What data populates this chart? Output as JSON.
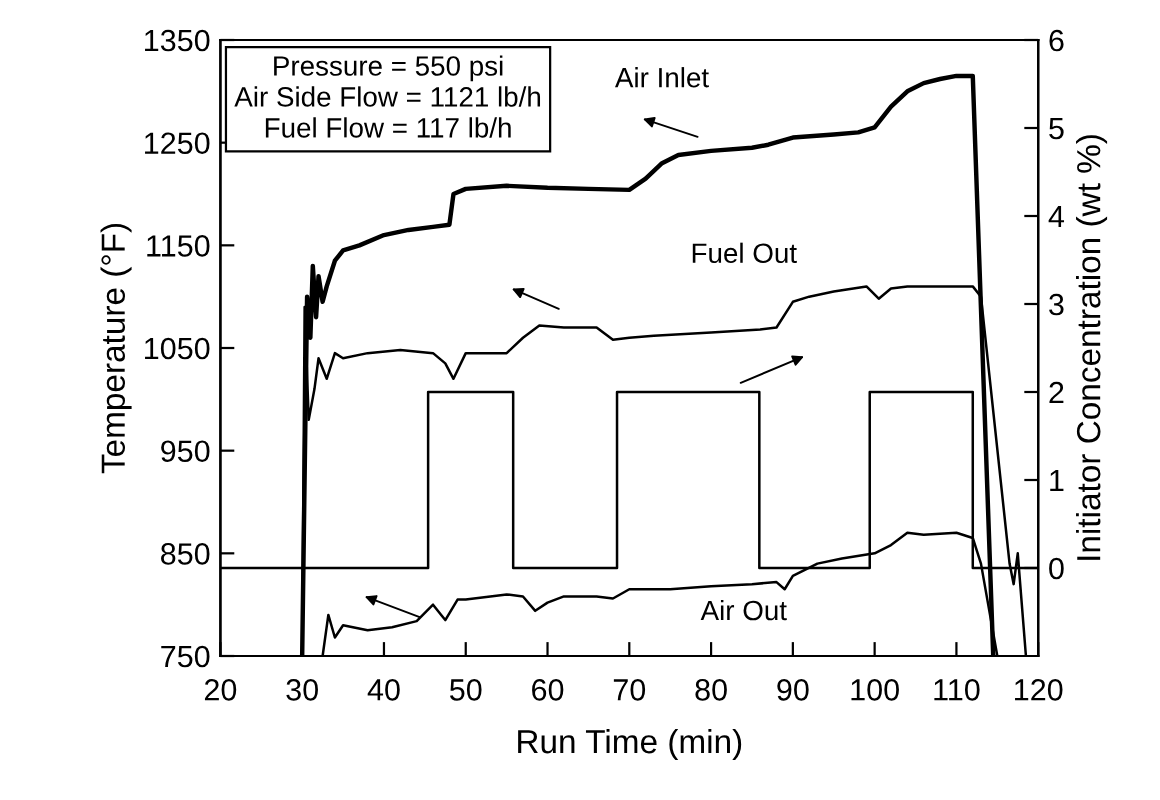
{
  "chart_data": {
    "type": "line",
    "xlabel": "Run Time (min)",
    "ylabel": "Temperature (°F)",
    "y2label": "Initiator Concentration (wt %)",
    "annotations": [
      "Pressure = 550 psi",
      "Air Side Flow = 1121 lb/h",
      "Fuel Flow = 117 lb/h"
    ],
    "xlim": [
      20,
      120
    ],
    "xticks": [
      20,
      30,
      40,
      50,
      60,
      70,
      80,
      90,
      100,
      110,
      120
    ],
    "ylim": [
      750,
      1350
    ],
    "yticks": [
      750,
      850,
      950,
      1050,
      1150,
      1250,
      1350
    ],
    "y2lim": [
      -1,
      6
    ],
    "y2ticks": [
      0,
      1,
      2,
      3,
      4,
      5,
      6
    ],
    "grid": false,
    "legend": false,
    "marker": "none",
    "line_style": "solid",
    "series": [
      {
        "name": "Air Inlet",
        "color": "#000000",
        "x": [
          30,
          30.6,
          31,
          31.3,
          31.7,
          32,
          32.5,
          33,
          34,
          35,
          37,
          40,
          43,
          46,
          48,
          48.5,
          50,
          55,
          60,
          65,
          70,
          72,
          74,
          76,
          80,
          85,
          87,
          90,
          95,
          98,
          100,
          102,
          104,
          106,
          108,
          110,
          112,
          114.5
        ],
        "values": [
          750,
          1100,
          1060,
          1130,
          1080,
          1120,
          1095,
          1110,
          1135,
          1145,
          1150,
          1160,
          1165,
          1168,
          1170,
          1200,
          1205,
          1208,
          1206,
          1205,
          1204,
          1215,
          1230,
          1238,
          1242,
          1245,
          1248,
          1255,
          1258,
          1260,
          1265,
          1285,
          1300,
          1308,
          1312,
          1315,
          1315,
          750
        ]
      },
      {
        "name": "Fuel Out",
        "color": "#000000",
        "x": [
          30,
          30.3,
          30.8,
          31.5,
          32,
          33,
          34,
          35,
          38,
          42,
          46,
          47.5,
          48.5,
          50,
          55,
          57,
          59,
          62,
          66,
          68,
          70,
          73,
          80,
          86,
          88,
          90,
          92,
          95,
          99,
          100.5,
          102,
          104,
          108,
          112,
          113,
          116.5,
          117,
          117.5,
          118.5
        ],
        "values": [
          750,
          1090,
          980,
          1010,
          1040,
          1020,
          1045,
          1040,
          1045,
          1048,
          1045,
          1035,
          1020,
          1045,
          1045,
          1060,
          1072,
          1070,
          1070,
          1058,
          1060,
          1062,
          1065,
          1068,
          1070,
          1095,
          1100,
          1105,
          1110,
          1098,
          1108,
          1110,
          1110,
          1110,
          1100,
          840,
          820,
          850,
          750
        ]
      },
      {
        "name": "Air Out",
        "color": "#000000",
        "x": [
          32.5,
          33.2,
          34,
          35,
          38,
          41,
          44,
          46,
          47,
          47.5,
          49,
          50,
          55,
          57,
          58.5,
          60,
          62,
          66,
          68,
          70,
          75,
          80,
          85,
          88,
          89,
          90,
          93,
          96,
          100,
          102,
          104,
          106,
          110,
          112,
          113,
          115
        ],
        "values": [
          750,
          790,
          768,
          780,
          775,
          778,
          784,
          800,
          790,
          785,
          805,
          805,
          810,
          808,
          794,
          802,
          808,
          808,
          806,
          815,
          815,
          818,
          820,
          822,
          815,
          828,
          840,
          845,
          850,
          858,
          870,
          868,
          870,
          865,
          840,
          750
        ]
      },
      {
        "type": "step",
        "axis": "y2",
        "color": "#000000",
        "x": [
          20,
          45.4,
          55.8,
          68.5,
          85.9,
          99.4,
          112,
          120
        ],
        "values": [
          0,
          2,
          0,
          2,
          0,
          2,
          0,
          0
        ]
      }
    ]
  }
}
